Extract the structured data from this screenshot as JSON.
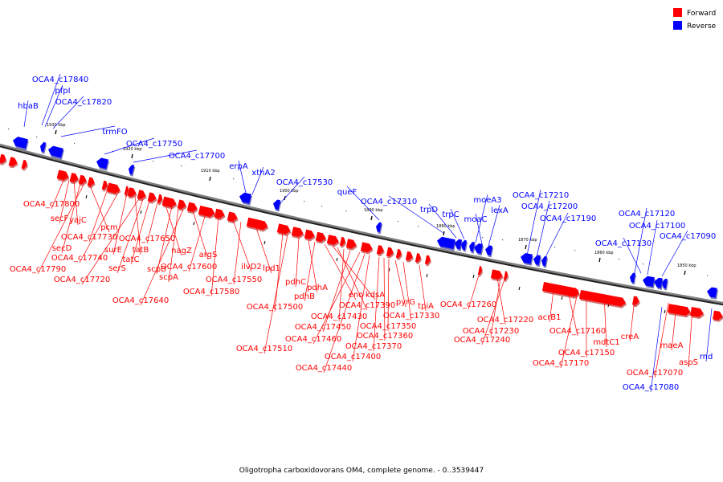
{
  "chart_data": {
    "type": "genome_map",
    "caption": "Oligotropha carboxidovorans OM4, complete genome. - 0..3539447",
    "legend": [
      {
        "label": "Forward",
        "color": "#ff0000"
      },
      {
        "label": "Reverse",
        "color": "#0000ff"
      }
    ],
    "colors": {
      "forward": "#ff0000",
      "reverse": "#0000ff",
      "backbone": "#808080"
    },
    "ticks": [
      "1930 kbp",
      "1920 kbp",
      "1910 kbp",
      "1900 kbp",
      "1890 kbp",
      "1880 kbp",
      "1870 kbp",
      "1860 kbp",
      "1850 kbp"
    ],
    "genes": {
      "forward": [
        "OCA4_c17800",
        "secF",
        "yajC",
        "secD",
        "OCA4_c17790",
        "pcm",
        "OCA4_c17730",
        "OCA4_c17740",
        "surE",
        "tatB",
        "OCA4_c17720",
        "serS",
        "tatC",
        "OCA4_c17650",
        "nagZ",
        "scpB",
        "scpA",
        "OCA4_c17640",
        "argS",
        "OCA4_c17600",
        "OCA4_c17580",
        "ilvD2",
        "OCA4_c17550",
        "lpd1",
        "OCA4_c17500",
        "OCA4_c17510",
        "pdhC",
        "pdhA",
        "pdhB",
        "eno",
        "kdsA",
        "OCA4_c17390",
        "OCA4_c17430",
        "OCA4_c17450",
        "OCA4_c17460",
        "OCA4_c17440",
        "OCA4_c17400",
        "OCA4_c17370",
        "OCA4_c17360",
        "OCA4_c17350",
        "pyrG",
        "OCA4_c17330",
        "tpiA",
        "OCA4_c17260",
        "OCA4_c17220",
        "OCA4_c17230",
        "OCA4_c17240",
        "acrB1",
        "OCA4_c17160",
        "OCA4_c17150",
        "OCA4_c17170",
        "mdtC1",
        "creA",
        "maeA",
        "aspS",
        "OCA4_c17070"
      ],
      "reverse": [
        "OCA4_c17840",
        "pfpI",
        "hbaB",
        "OCA4_c17820",
        "trmFO",
        "OCA4_c17750",
        "OCA4_c17700",
        "erpA",
        "xthA2",
        "OCA4_c17530",
        "queF",
        "OCA4_c17310",
        "trpD",
        "trpC",
        "moeA3",
        "moaC",
        "lexA",
        "OCA4_c17210",
        "OCA4_c17200",
        "OCA4_c17190",
        "OCA4_c17120",
        "OCA4_c17100",
        "OCA4_c17130",
        "OCA4_c17090",
        "OCA4_c17080",
        "rnd"
      ]
    }
  }
}
